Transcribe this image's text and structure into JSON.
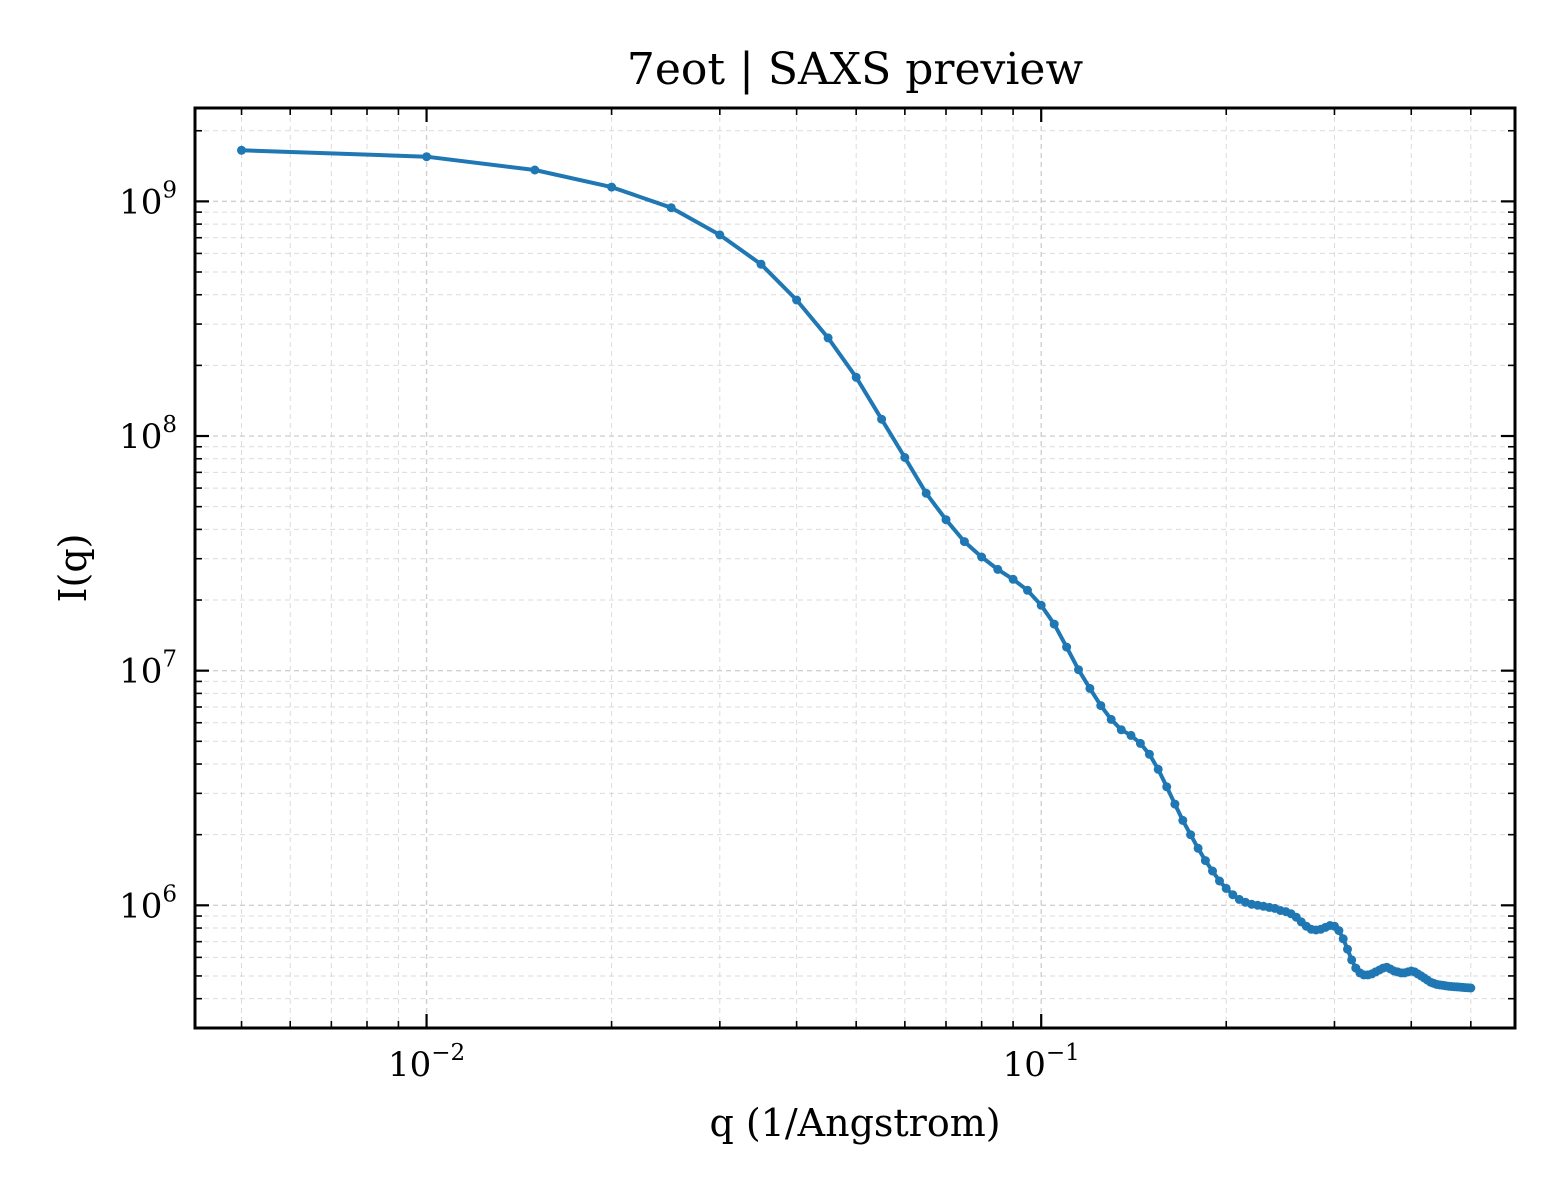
{
  "chart_data": {
    "type": "line",
    "title": "7eot | SAXS preview",
    "xlabel": "q (1/Angstrom)",
    "ylabel": "I(q)",
    "xscale": "log",
    "yscale": "log",
    "xlim": [
      0.0042,
      0.59
    ],
    "ylim": [
      300000,
      2500000000
    ],
    "grid": true,
    "legend": "none",
    "color": "#1f77b4",
    "x_ticks": [
      {
        "value": 0.01,
        "base": "10",
        "exp": "−2"
      },
      {
        "value": 0.1,
        "base": "10",
        "exp": "−1"
      }
    ],
    "y_ticks": [
      {
        "value": 1000000,
        "base": "10",
        "exp": "6"
      },
      {
        "value": 10000000,
        "base": "10",
        "exp": "7"
      },
      {
        "value": 100000000,
        "base": "10",
        "exp": "8"
      },
      {
        "value": 1000000000,
        "base": "10",
        "exp": "9"
      }
    ],
    "series": [
      {
        "x": [
          0.005,
          0.01,
          0.015,
          0.02,
          0.025,
          0.03,
          0.035,
          0.04,
          0.045,
          0.05,
          0.055,
          0.06,
          0.065,
          0.07,
          0.075,
          0.08,
          0.085,
          0.09,
          0.095,
          0.1,
          0.105,
          0.11,
          0.115,
          0.12,
          0.125,
          0.13,
          0.135,
          0.14,
          0.145,
          0.15,
          0.155,
          0.16,
          0.165,
          0.17,
          0.175,
          0.18,
          0.185,
          0.19,
          0.195,
          0.2,
          0.205,
          0.21,
          0.215,
          0.22,
          0.225,
          0.23,
          0.235,
          0.24,
          0.245,
          0.25,
          0.255,
          0.26,
          0.265,
          0.27,
          0.275,
          0.28,
          0.285,
          0.29,
          0.295,
          0.3,
          0.305,
          0.31,
          0.315,
          0.32,
          0.325,
          0.33,
          0.335,
          0.34,
          0.345,
          0.35,
          0.355,
          0.36,
          0.365,
          0.37,
          0.375,
          0.38,
          0.385,
          0.39,
          0.395,
          0.4,
          0.405,
          0.41,
          0.415,
          0.42,
          0.425,
          0.43,
          0.435,
          0.44,
          0.445,
          0.45,
          0.455,
          0.46,
          0.465,
          0.47,
          0.475,
          0.48,
          0.485,
          0.49,
          0.495,
          0.5
        ],
        "y": [
          1650000000,
          1550000000,
          1360000000,
          1150000000,
          940000000,
          720000000,
          540000000,
          380000000,
          262000000,
          178000000,
          118000000,
          81000000,
          57000000,
          44000000,
          35500000,
          30500000,
          27000000,
          24500000,
          22000000,
          19000000,
          15800000,
          12600000,
          10100000,
          8400000,
          7100000,
          6200000,
          5600000,
          5300000,
          4900000,
          4400000,
          3800000,
          3200000,
          2700000,
          2300000,
          2000000,
          1750000,
          1550000,
          1400000,
          1270000,
          1180000,
          1110000,
          1060000,
          1030000,
          1010000,
          1000000,
          990000,
          980000,
          970000,
          950000,
          940000,
          920000,
          890000,
          850000,
          815000,
          790000,
          785000,
          790000,
          805000,
          820000,
          815000,
          780000,
          720000,
          650000,
          585000,
          540000,
          515000,
          505000,
          505000,
          510000,
          520000,
          530000,
          540000,
          545000,
          535000,
          525000,
          520000,
          515000,
          515000,
          520000,
          525000,
          520000,
          510000,
          500000,
          490000,
          480000,
          470000,
          465000,
          460000,
          458000,
          456000,
          454000,
          452000,
          451000,
          450000,
          449000,
          448000,
          447000,
          446000,
          445000,
          444000
        ]
      }
    ]
  }
}
